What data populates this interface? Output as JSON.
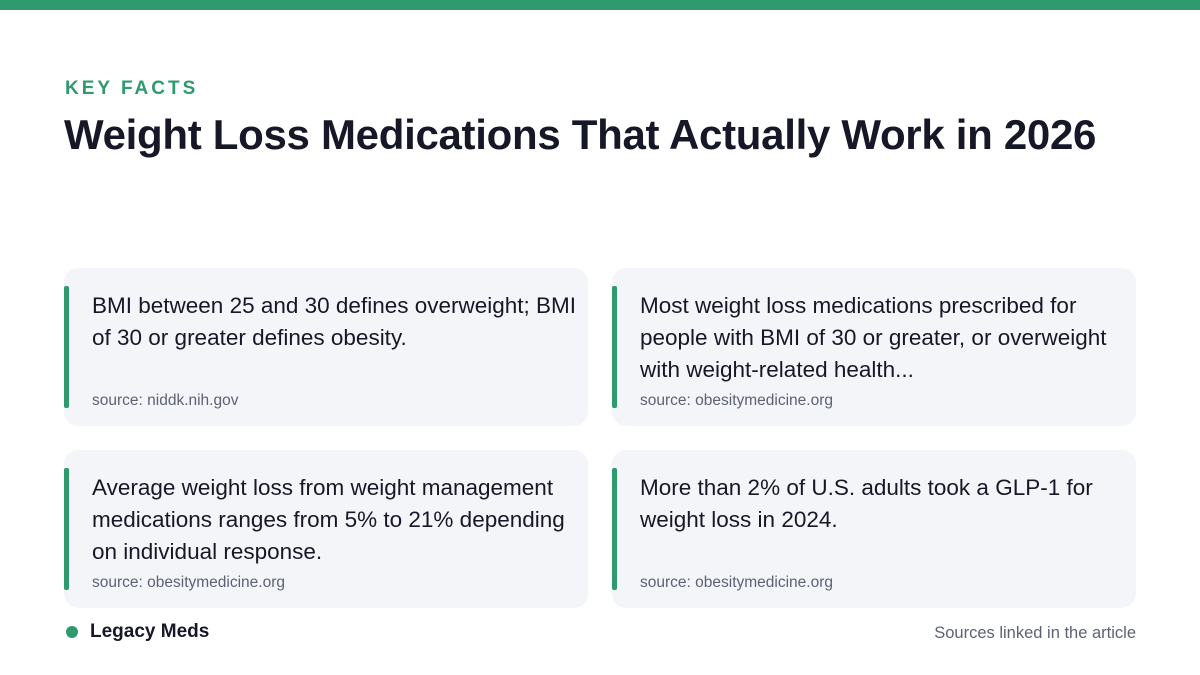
{
  "header": {
    "eyebrow": "KEY FACTS",
    "title": "Weight Loss Medications That Actually Work in 2026"
  },
  "cards": [
    {
      "fact": "BMI between 25 and 30 defines overweight; BMI of 30 or greater defines obesity.",
      "source": "source: niddk.nih.gov"
    },
    {
      "fact": "Most weight loss medications prescribed for people with BMI of 30 or greater, or overweight with weight-related health...",
      "source": "source: obesitymedicine.org"
    },
    {
      "fact": "Average weight loss from weight management medications ranges from 5% to 21% depending on individual response.",
      "source": "source: obesitymedicine.org"
    },
    {
      "fact": "More than 2% of U.S. adults took a GLP-1 for weight loss in 2024.",
      "source": "source: obesitymedicine.org"
    }
  ],
  "footer": {
    "brand": "Legacy Meds",
    "note": "Sources linked in the article"
  },
  "colors": {
    "accent": "#2f9a6d",
    "card_background": "#f4f5f9",
    "text": "#161827",
    "muted": "#5c6272"
  }
}
